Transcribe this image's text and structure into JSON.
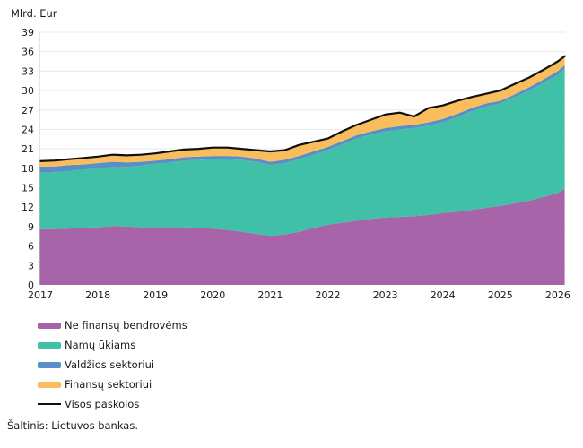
{
  "header": {
    "y_axis_title": "Mlrd. Eur"
  },
  "source": {
    "text": "Šaltinis: Lietuvos bankas."
  },
  "theme": {
    "background": "#ffffff",
    "grid_color": "#eaeaea",
    "axis_color": "#c9c9c9",
    "text_color": "#1a1a1a",
    "purple": "#a864a8",
    "teal": "#40c1a7",
    "blue": "#5a8ec6",
    "orange": "#f9bd5d",
    "black_line": "#101010"
  },
  "legend": [
    {
      "label": "Ne finansų bendrovėms",
      "color": "#a864a8",
      "type": "area"
    },
    {
      "label": "Namų ūkiams",
      "color": "#40c1a7",
      "type": "area"
    },
    {
      "label": "Valdžios sektoriui",
      "color": "#5a8ec6",
      "type": "area"
    },
    {
      "label": "Finansų sektoriui",
      "color": "#f9bd5d",
      "type": "area"
    },
    {
      "label": "Visos paskolos",
      "color": "#101010",
      "type": "line"
    }
  ],
  "chart_data": {
    "type": "area",
    "stacked": true,
    "title": "",
    "xlabel": "",
    "ylabel": "Mlrd. Eur",
    "grid": true,
    "legend_position": "bottom-left",
    "ylim": [
      0,
      39
    ],
    "y_ticks": [
      0,
      3,
      6,
      9,
      12,
      15,
      18,
      21,
      24,
      27,
      30,
      33,
      36,
      39
    ],
    "x_ticks": [
      2017,
      2018,
      2019,
      2020,
      2021,
      2022,
      2023,
      2024,
      2025,
      2026
    ],
    "xlim": [
      2017,
      2026.12
    ],
    "x": [
      2017.0,
      2017.25,
      2017.5,
      2017.75,
      2018.0,
      2018.25,
      2018.5,
      2018.75,
      2019.0,
      2019.25,
      2019.5,
      2019.75,
      2020.0,
      2020.25,
      2020.5,
      2020.75,
      2021.0,
      2021.25,
      2021.5,
      2021.75,
      2022.0,
      2022.25,
      2022.5,
      2022.75,
      2023.0,
      2023.25,
      2023.5,
      2023.75,
      2024.0,
      2024.25,
      2024.5,
      2024.75,
      2025.0,
      2025.25,
      2025.5,
      2025.75,
      2026.0,
      2026.12
    ],
    "series": [
      {
        "name": "Ne finansų bendrovėms",
        "color": "#a864a8",
        "values": [
          8.6,
          8.6,
          8.7,
          8.8,
          8.9,
          9.1,
          9.0,
          8.9,
          8.9,
          8.9,
          8.9,
          8.8,
          8.7,
          8.5,
          8.2,
          7.9,
          7.6,
          7.8,
          8.2,
          8.8,
          9.3,
          9.6,
          9.9,
          10.2,
          10.4,
          10.5,
          10.6,
          10.8,
          11.1,
          11.3,
          11.6,
          11.9,
          12.2,
          12.6,
          13.0,
          13.6,
          14.2,
          14.8
        ]
      },
      {
        "name": "Namų ūkiams",
        "color": "#40c1a7",
        "values": [
          8.7,
          8.8,
          8.9,
          9.0,
          9.1,
          9.1,
          9.2,
          9.5,
          9.8,
          10.0,
          10.3,
          10.5,
          10.7,
          10.9,
          11.1,
          11.1,
          10.9,
          11.0,
          11.2,
          11.3,
          11.5,
          12.1,
          12.7,
          13.0,
          13.3,
          13.5,
          13.6,
          13.8,
          14.0,
          14.6,
          15.2,
          15.6,
          15.8,
          16.4,
          17.0,
          17.6,
          18.2,
          18.6
        ]
      },
      {
        "name": "Valdžios sektoriui",
        "color": "#5a8ec6",
        "values": [
          1.0,
          0.9,
          0.9,
          0.8,
          0.8,
          0.8,
          0.7,
          0.6,
          0.5,
          0.5,
          0.5,
          0.5,
          0.5,
          0.5,
          0.5,
          0.5,
          0.5,
          0.5,
          0.5,
          0.5,
          0.5,
          0.5,
          0.5,
          0.5,
          0.5,
          0.5,
          0.5,
          0.5,
          0.5,
          0.5,
          0.5,
          0.5,
          0.4,
          0.4,
          0.5,
          0.5,
          0.6,
          0.5
        ]
      },
      {
        "name": "Finansų sektoriui",
        "color": "#f9bd5d",
        "values": [
          0.8,
          0.9,
          0.9,
          1.0,
          1.0,
          1.1,
          1.1,
          1.1,
          1.1,
          1.2,
          1.2,
          1.2,
          1.3,
          1.3,
          1.2,
          1.3,
          1.6,
          1.5,
          1.7,
          1.5,
          1.3,
          1.5,
          1.6,
          1.8,
          2.1,
          2.1,
          1.3,
          2.2,
          2.1,
          2.0,
          1.7,
          1.5,
          1.6,
          1.6,
          1.5,
          1.5,
          1.5,
          1.4
        ]
      }
    ],
    "line_series": {
      "name": "Visos paskolos",
      "color": "#101010",
      "values": [
        19.1,
        19.2,
        19.4,
        19.6,
        19.8,
        20.1,
        20.0,
        20.1,
        20.3,
        20.6,
        20.9,
        21.0,
        21.2,
        21.2,
        21.0,
        20.8,
        20.6,
        20.8,
        21.6,
        22.1,
        22.6,
        23.7,
        24.7,
        25.5,
        26.3,
        26.6,
        26.0,
        27.3,
        27.7,
        28.4,
        29.0,
        29.5,
        30.0,
        31.0,
        32.0,
        33.2,
        34.5,
        35.3
      ]
    }
  }
}
